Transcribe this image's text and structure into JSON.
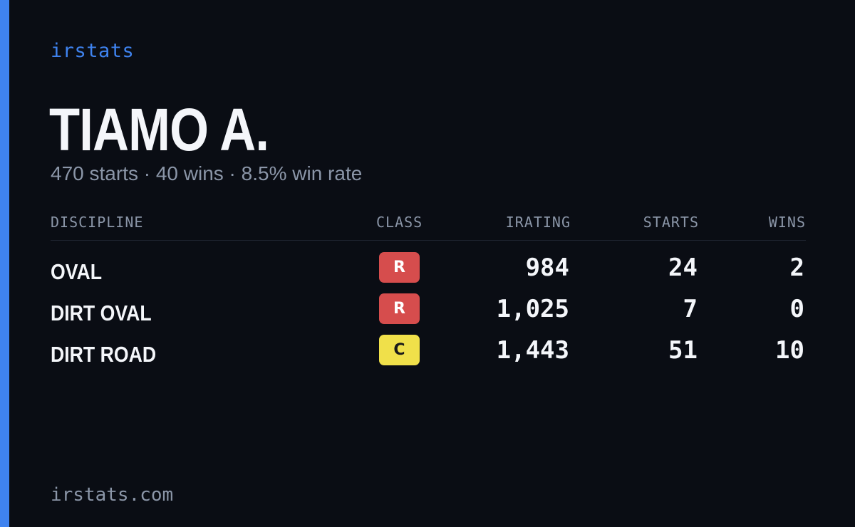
{
  "brand": "irstats",
  "driver": {
    "name": "TIAMO A.",
    "summary": "470 starts · 40 wins · 8.5% win rate"
  },
  "table": {
    "headers": {
      "discipline": "DISCIPLINE",
      "class": "CLASS",
      "irating": "IRATING",
      "starts": "STARTS",
      "wins": "WINS"
    },
    "rows": [
      {
        "discipline": "OVAL",
        "class": "R",
        "class_color": "#d64d4d",
        "class_text_color": "#ffffff",
        "irating": "984",
        "starts": "24",
        "wins": "2"
      },
      {
        "discipline": "DIRT OVAL",
        "class": "R",
        "class_color": "#d64d4d",
        "class_text_color": "#ffffff",
        "irating": "1,025",
        "starts": "7",
        "wins": "0"
      },
      {
        "discipline": "DIRT ROAD",
        "class": "C",
        "class_color": "#f0e04a",
        "class_text_color": "#1a1a1a",
        "irating": "1,443",
        "starts": "51",
        "wins": "10"
      }
    ]
  },
  "footer": "irstats.com",
  "colors": {
    "background": "#0a0d14",
    "accent": "#3f83f0",
    "text": "#f4f6fa",
    "muted": "#8b96a8"
  }
}
